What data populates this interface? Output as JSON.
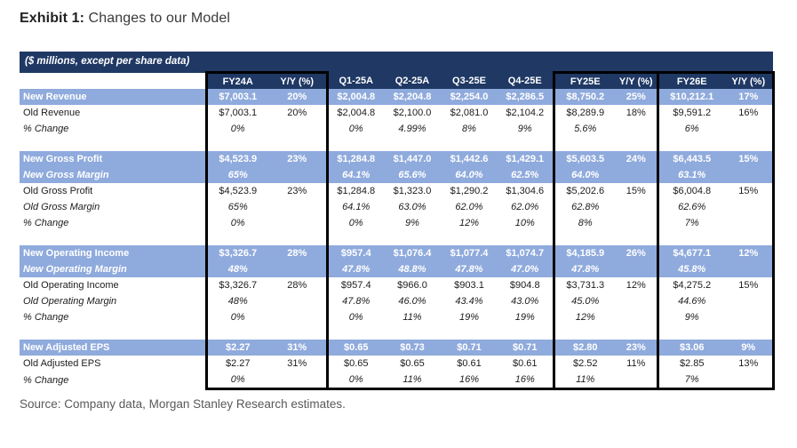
{
  "title": {
    "prefix": "Exhibit 1:",
    "rest": " Changes to our Model"
  },
  "source": "Source: Company data, Morgan Stanley Research estimates.",
  "colors": {
    "navy": "#1f3864",
    "band_blue": "#8faadc",
    "border": "#000000"
  },
  "table": {
    "units_note": "($ millions, except per share data)",
    "columns": [
      "FY24A",
      "Y/Y (%)",
      "Q1-25A",
      "Q2-25A",
      "Q3-25E",
      "Q4-25E",
      "FY25E",
      "Y/Y (%)",
      "FY26E",
      "Y/Y (%)"
    ],
    "sections": [
      {
        "name": "revenue",
        "rows": [
          {
            "label": "New Revenue",
            "style": "band",
            "cells": [
              "$7,003.1",
              "20%",
              "$2,004.8",
              "$2,204.8",
              "$2,254.0",
              "$2,286.5",
              "$8,750.2",
              "25%",
              "$10,212.1",
              "17%"
            ]
          },
          {
            "label": "Old Revenue",
            "style": "plain",
            "cells": [
              "$7,003.1",
              "20%",
              "$2,004.8",
              "$2,100.0",
              "$2,081.0",
              "$2,104.2",
              "$8,289.9",
              "18%",
              "$9,591.2",
              "16%"
            ]
          },
          {
            "label": "% Change",
            "style": "italic",
            "cells": [
              "0%",
              "",
              "0%",
              "4.99%",
              "8%",
              "9%",
              "5.6%",
              "",
              "6%",
              ""
            ]
          }
        ]
      },
      {
        "name": "gross-profit",
        "rows": [
          {
            "label": "New Gross Profit",
            "style": "band",
            "cells": [
              "$4,523.9",
              "23%",
              "$1,284.8",
              "$1,447.0",
              "$1,442.6",
              "$1,429.1",
              "$5,603.5",
              "24%",
              "$6,443.5",
              "15%"
            ]
          },
          {
            "label": "New Gross Margin",
            "style": "band-italic",
            "cells": [
              "65%",
              "",
              "64.1%",
              "65.6%",
              "64.0%",
              "62.5%",
              "64.0%",
              "",
              "63.1%",
              ""
            ]
          },
          {
            "label": "Old Gross Profit",
            "style": "plain",
            "cells": [
              "$4,523.9",
              "23%",
              "$1,284.8",
              "$1,323.0",
              "$1,290.2",
              "$1,304.6",
              "$5,202.6",
              "15%",
              "$6,004.8",
              "15%"
            ]
          },
          {
            "label": "Old Gross Margin",
            "style": "italic",
            "cells": [
              "65%",
              "",
              "64.1%",
              "63.0%",
              "62.0%",
              "62.0%",
              "62.8%",
              "",
              "62.6%",
              ""
            ]
          },
          {
            "label": "% Change",
            "style": "italic",
            "cells": [
              "0%",
              "",
              "0%",
              "9%",
              "12%",
              "10%",
              "8%",
              "",
              "7%",
              ""
            ]
          }
        ]
      },
      {
        "name": "operating-income",
        "rows": [
          {
            "label": "New Operating Income",
            "style": "band",
            "cells": [
              "$3,326.7",
              "28%",
              "$957.4",
              "$1,076.4",
              "$1,077.4",
              "$1,074.7",
              "$4,185.9",
              "26%",
              "$4,677.1",
              "12%"
            ]
          },
          {
            "label": "New Operating Margin",
            "style": "band-italic",
            "cells": [
              "48%",
              "",
              "47.8%",
              "48.8%",
              "47.8%",
              "47.0%",
              "47.8%",
              "",
              "45.8%",
              ""
            ]
          },
          {
            "label": "Old Operating Income",
            "style": "plain",
            "cells": [
              "$3,326.7",
              "28%",
              "$957.4",
              "$966.0",
              "$903.1",
              "$904.8",
              "$3,731.3",
              "12%",
              "$4,275.2",
              "15%"
            ]
          },
          {
            "label": "Old Operating Margin",
            "style": "italic",
            "cells": [
              "48%",
              "",
              "47.8%",
              "46.0%",
              "43.4%",
              "43.0%",
              "45.0%",
              "",
              "44.6%",
              ""
            ]
          },
          {
            "label": "% Change",
            "style": "italic",
            "cells": [
              "0%",
              "",
              "0%",
              "11%",
              "19%",
              "19%",
              "12%",
              "",
              "9%",
              ""
            ]
          }
        ]
      },
      {
        "name": "adjusted-eps",
        "rows": [
          {
            "label": "New Adjusted EPS",
            "style": "band",
            "cells": [
              "$2.27",
              "31%",
              "$0.65",
              "$0.73",
              "$0.71",
              "$0.71",
              "$2.80",
              "23%",
              "$3.06",
              "9%"
            ]
          },
          {
            "label": "Old Adjusted EPS",
            "style": "plain",
            "cells": [
              "$2.27",
              "31%",
              "$0.65",
              "$0.65",
              "$0.61",
              "$0.61",
              "$2.52",
              "11%",
              "$2.85",
              "13%"
            ]
          },
          {
            "label": "% Change",
            "style": "italic",
            "cells": [
              "0%",
              "",
              "0%",
              "11%",
              "16%",
              "16%",
              "11%",
              "",
              "7%",
              ""
            ]
          }
        ]
      }
    ]
  }
}
